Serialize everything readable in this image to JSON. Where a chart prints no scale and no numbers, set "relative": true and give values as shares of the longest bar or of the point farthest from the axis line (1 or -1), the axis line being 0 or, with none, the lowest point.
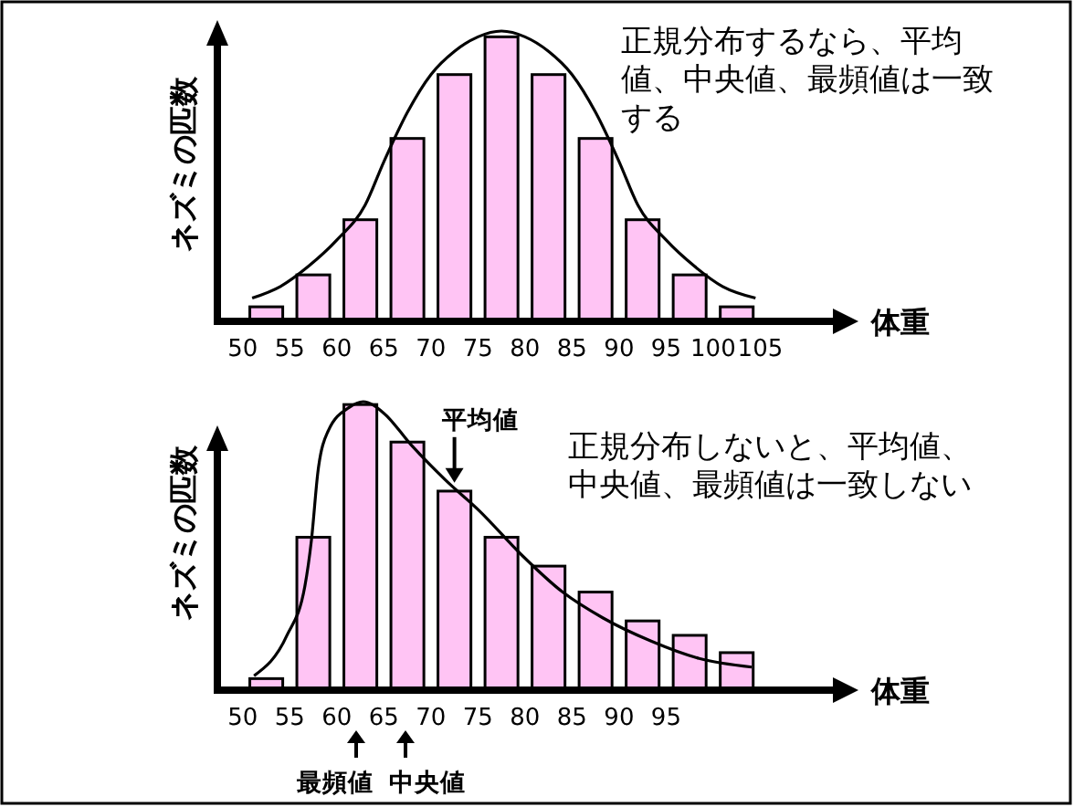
{
  "chart_data": [
    {
      "type": "histogram",
      "relative": true,
      "xlabel": "体重",
      "ylabel": "ネズミの匹数",
      "bins": [
        50,
        55,
        60,
        65,
        70,
        75,
        80,
        85,
        90,
        95,
        100,
        105
      ],
      "xlim": [
        47.3,
        113.5
      ],
      "xticks": [
        50,
        55,
        60,
        65,
        70,
        75,
        80,
        85,
        90,
        95,
        100,
        105
      ],
      "annotations": [
        "正規分布するなら、平均値、中央値、最頻値は一致する"
      ],
      "series": [
        {
          "color": "#ffc4f4",
          "values": [
            0.05,
            0.16,
            0.35,
            0.63,
            0.85,
            0.98,
            0.85,
            0.63,
            0.35,
            0.16,
            0.05
          ]
        },
        {
          "type": "line",
          "color": "#000000",
          "x": [
            51,
            54,
            57,
            60,
            63,
            65,
            67.5,
            70,
            72.5,
            75,
            77.5,
            80,
            82.5,
            85,
            87.5,
            90,
            92,
            95,
            98,
            101,
            104.5
          ],
          "values": [
            0.08,
            0.12,
            0.19,
            0.28,
            0.4,
            0.55,
            0.72,
            0.85,
            0.93,
            0.98,
            1,
            0.98,
            0.93,
            0.85,
            0.72,
            0.55,
            0.4,
            0.28,
            0.19,
            0.12,
            0.08
          ]
        }
      ]
    },
    {
      "type": "histogram",
      "relative": true,
      "xlabel": "体重",
      "ylabel": "ネズミの匹数",
      "bins": [
        50,
        55,
        60,
        65,
        70,
        75,
        80,
        85,
        90,
        95,
        100,
        105
      ],
      "xlim": [
        47.3,
        113.5
      ],
      "xticks": [
        50,
        55,
        60,
        65,
        70,
        75,
        80,
        85,
        90,
        95
      ],
      "annotations": [
        "正規分布しないと、平均値、中央値、最頻値は一致しない",
        {
          "text": "平均値",
          "x": 72.5,
          "y": 0.7
        },
        "最頻値",
        "中央値"
      ],
      "series": [
        {
          "color": "#ffc4f4",
          "values": [
            0.04,
            0.53,
            0.99,
            0.86,
            0.69,
            0.53,
            0.43,
            0.34,
            0.24,
            0.19,
            0.13
          ]
        },
        {
          "type": "line",
          "color": "#000000",
          "x": [
            51.2,
            54.7,
            56.6,
            57.3,
            58,
            59.1,
            61.3,
            62.8,
            65,
            67.9,
            71.5,
            75.2,
            79.6,
            84,
            88.3,
            93.4,
            98.5,
            104.1
          ],
          "values": [
            0.05,
            0.19,
            0.36,
            0.52,
            0.76,
            0.9,
            0.98,
            1,
            0.96,
            0.85,
            0.73,
            0.62,
            0.47,
            0.34,
            0.25,
            0.17,
            0.11,
            0.08
          ]
        }
      ]
    }
  ]
}
